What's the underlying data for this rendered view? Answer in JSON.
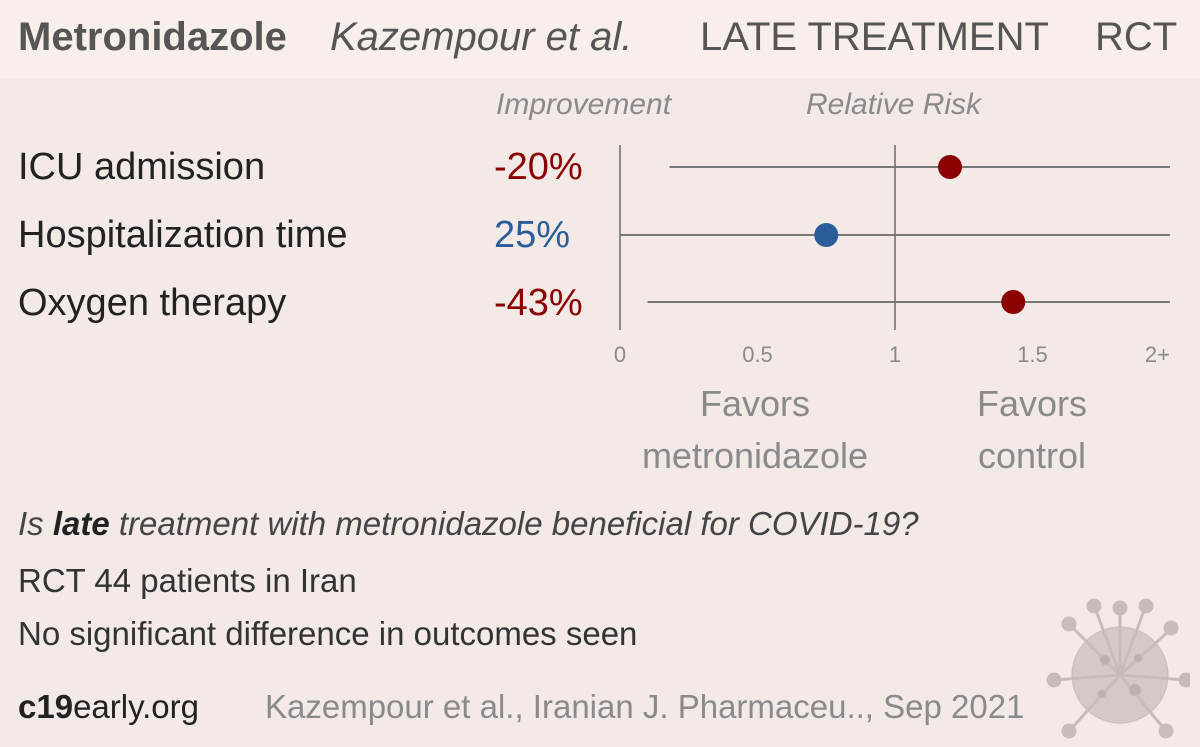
{
  "header": {
    "drug": "Metronidazole",
    "study": "Kazempour et al.",
    "stage": "LATE TREATMENT",
    "design": "RCT"
  },
  "colors": {
    "harm": "#8b0000",
    "benefit": "#2a5d99",
    "line": "#777777",
    "axis": "#8a8a8a",
    "background": "#f3e9e7"
  },
  "chart_data": {
    "type": "forest",
    "column_headers": {
      "improvement": "Improvement",
      "relative_risk": "Relative Risk"
    },
    "rows": [
      {
        "outcome": "ICU admission",
        "improvement": "-20%",
        "rr": 1.2,
        "ci": [
          0.18,
          2.0
        ],
        "direction": "harm"
      },
      {
        "outcome": "Hospitalization time",
        "improvement": "25%",
        "rr": 0.75,
        "ci": [
          0.0,
          2.0
        ],
        "direction": "benefit"
      },
      {
        "outcome": "Oxygen therapy",
        "improvement": "-43%",
        "rr": 1.43,
        "ci": [
          0.1,
          2.0
        ],
        "direction": "harm"
      }
    ],
    "x_ticks": [
      "0",
      "0.5",
      "1",
      "1.5",
      "2+"
    ],
    "x_tick_values": [
      0,
      0.5,
      1,
      1.5,
      2
    ],
    "xlim": [
      0,
      2
    ],
    "favors_left": [
      "Favors",
      "metronidazole"
    ],
    "favors_right": [
      "Favors",
      "control"
    ]
  },
  "summary": {
    "question_pre": "Is ",
    "question_bold": "late",
    "question_post": " treatment with metronidazole beneficial for COVID-19?",
    "patients": "RCT 44 patients in Iran",
    "conclusion": "No significant difference in outcomes seen"
  },
  "footer": {
    "brand_bold": "c19",
    "brand_rest": "early.org",
    "citation": "Kazempour et al., Iranian J. Pharmaceu.., Sep 2021"
  },
  "decorative": {
    "virus_icon": "coronavirus-icon"
  }
}
